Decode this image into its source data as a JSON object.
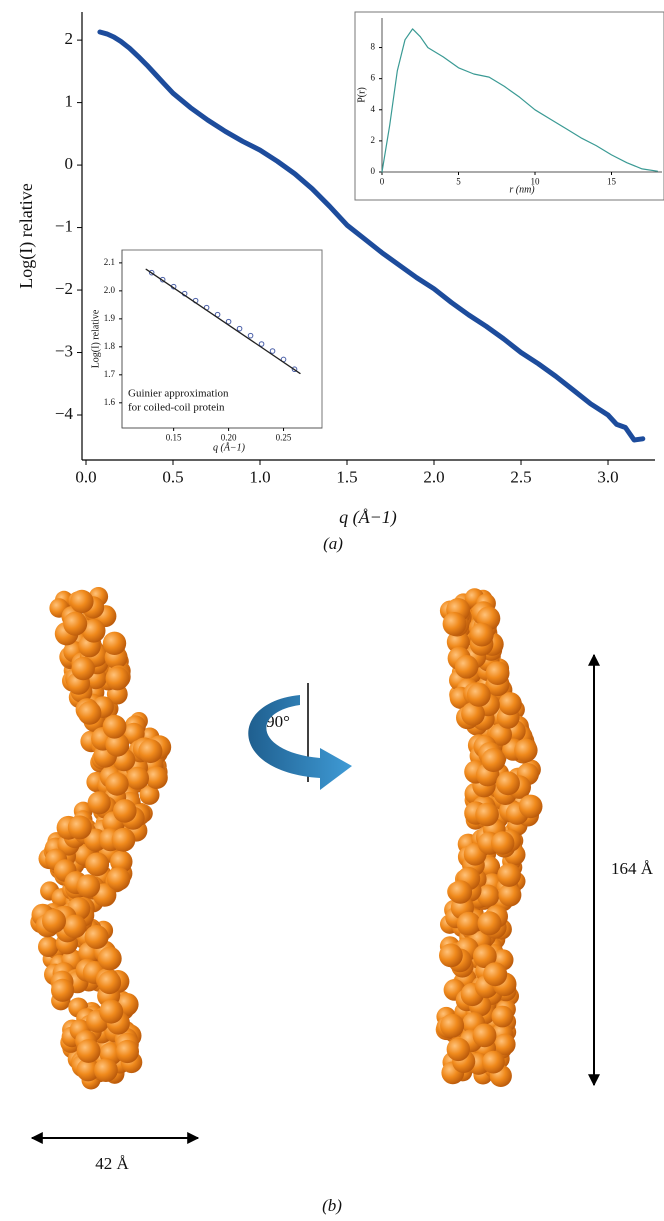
{
  "chart_data": [
    {
      "type": "line",
      "xlabel": "q (Å−1)",
      "ylabel": "Log(I) relative",
      "x": [
        0.08,
        0.12,
        0.16,
        0.2,
        0.25,
        0.3,
        0.35,
        0.4,
        0.45,
        0.5,
        0.6,
        0.7,
        0.8,
        0.9,
        1.0,
        1.1,
        1.2,
        1.3,
        1.4,
        1.5,
        1.6,
        1.7,
        1.8,
        1.9,
        2.0,
        2.1,
        2.2,
        2.3,
        2.4,
        2.5,
        2.6,
        2.7,
        2.8,
        2.9,
        3.0,
        3.05,
        3.1,
        3.15,
        3.2
      ],
      "series": [
        {
          "color": "#1d4c9c",
          "values": [
            2.13,
            2.1,
            2.05,
            1.98,
            1.87,
            1.74,
            1.6,
            1.45,
            1.3,
            1.15,
            0.92,
            0.72,
            0.54,
            0.38,
            0.24,
            0.06,
            -0.14,
            -0.38,
            -0.66,
            -0.96,
            -1.18,
            -1.4,
            -1.6,
            -1.8,
            -1.98,
            -2.2,
            -2.4,
            -2.58,
            -2.78,
            -3.0,
            -3.18,
            -3.38,
            -3.6,
            -3.82,
            -4.0,
            -4.15,
            -4.2,
            -4.4,
            -4.38
          ]
        }
      ],
      "xlim": [
        -0.023,
        3.27
      ],
      "ylim": [
        -4.72,
        2.45
      ],
      "xticks": [
        {
          "value": 0,
          "label": "0.0"
        },
        0.5,
        {
          "value": 1,
          "label": "1.0"
        },
        1.5,
        {
          "value": 2,
          "label": "2.0"
        },
        2.5,
        {
          "value": 3,
          "label": "3.0"
        }
      ],
      "yticks": [
        2,
        1,
        0,
        {
          "value": -1,
          "label": "−1"
        },
        {
          "value": -2,
          "label": "−2"
        },
        {
          "value": -3,
          "label": "−3"
        },
        {
          "value": -4,
          "label": "−4"
        }
      ]
    },
    {
      "type": "line",
      "xlabel": "r (nm)",
      "ylabel": "P(r)",
      "frame": true,
      "x": [
        0,
        0.5,
        1,
        1.5,
        2,
        2.5,
        3,
        4,
        5,
        6,
        7,
        8,
        9,
        10,
        11,
        12,
        13,
        14,
        15,
        16,
        17,
        18
      ],
      "series": [
        {
          "color": "#3a9a94",
          "values": [
            0,
            3,
            6.5,
            8.5,
            9.2,
            8.7,
            8.0,
            7.4,
            6.7,
            6.3,
            6.1,
            5.5,
            4.8,
            4.0,
            3.4,
            2.8,
            2.2,
            1.7,
            1.1,
            0.6,
            0.2,
            0.05
          ]
        }
      ],
      "xlim": [
        0,
        18.3
      ],
      "ylim": [
        0,
        9.9
      ],
      "xticks": [
        0,
        5,
        10,
        15
      ],
      "yticks": [
        0,
        2,
        4,
        6,
        8
      ]
    },
    {
      "type": "scatter",
      "xlabel": "q (Å−1)",
      "ylabel": "Log(I) relative",
      "frame": true,
      "annotation": [
        "Guinier approximation",
        "for coiled-coil protein"
      ],
      "series": [
        {
          "marker": "circle",
          "color": "#4a5fa8",
          "x": [
            0.13,
            0.14,
            0.15,
            0.16,
            0.17,
            0.18,
            0.19,
            0.2,
            0.21,
            0.22,
            0.23,
            0.24,
            0.25,
            0.26
          ],
          "values": [
            2.065,
            2.04,
            2.015,
            1.99,
            1.965,
            1.94,
            1.915,
            1.89,
            1.865,
            1.84,
            1.81,
            1.785,
            1.755,
            1.72
          ]
        },
        {
          "marker": "line",
          "color": "#222222",
          "x": [
            0.125,
            0.265
          ],
          "values": [
            2.077,
            1.705
          ]
        }
      ],
      "xlim": [
        0.103,
        0.285
      ],
      "ylim": [
        1.51,
        2.146
      ],
      "xticks": [
        0.15,
        {
          "value": 0.2,
          "label": "0.20"
        },
        0.25
      ],
      "yticks": [
        1.6,
        1.7,
        1.8,
        1.9,
        {
          "value": 2,
          "label": "2.0"
        },
        2.1
      ]
    }
  ],
  "figure": {
    "panel_a": "(a)",
    "panel_b": "(b)",
    "rotation": "90°",
    "height": "164 Å",
    "width": "42 Å"
  }
}
